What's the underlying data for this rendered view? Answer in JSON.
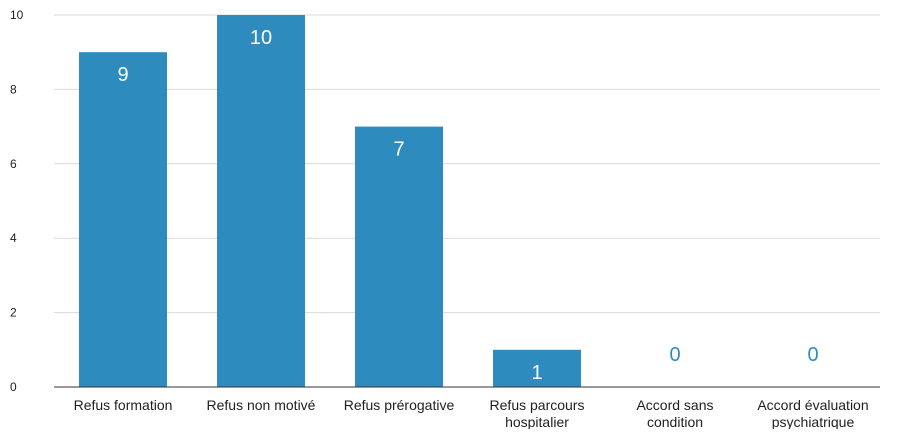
{
  "chart_data": {
    "type": "bar",
    "categories": [
      [
        "Refus formation"
      ],
      [
        "Refus non motivé"
      ],
      [
        "Refus prérogative"
      ],
      [
        "Refus parcours",
        "hospitalier"
      ],
      [
        "Accord sans",
        "condition"
      ],
      [
        "Accord évaluation",
        "psychiatrique"
      ]
    ],
    "values": [
      9,
      10,
      7,
      1,
      0,
      0
    ],
    "data_labels": [
      "9",
      "10",
      "7",
      "1",
      "0",
      "0"
    ],
    "ylim": [
      0,
      10
    ],
    "yticks": [
      0,
      2,
      4,
      6,
      8,
      10
    ],
    "ytick_labels": [
      "0",
      "2",
      "4",
      "6",
      "8",
      "10"
    ],
    "title": "",
    "xlabel": "",
    "ylabel": "",
    "grid": true,
    "legend": "none",
    "colors": {
      "bar": "#2e8bbd",
      "label_inside": "#ffffff",
      "label_outside": "#2e8bbd",
      "grid": "#d9d9d9"
    }
  }
}
